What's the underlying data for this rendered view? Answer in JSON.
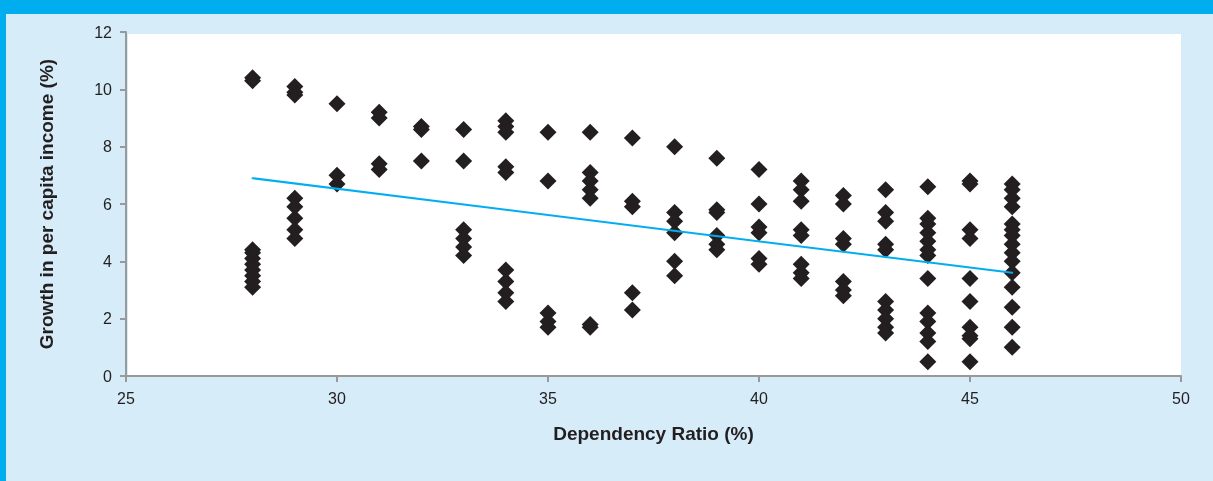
{
  "chart_data": {
    "type": "scatter",
    "xlabel": "Dependency Ratio (%)",
    "ylabel": "Growth in per capita income (%)",
    "xlim": [
      25,
      50
    ],
    "xticks": [
      25,
      30,
      35,
      40,
      45,
      50
    ],
    "ylim": [
      0,
      12
    ],
    "yticks": [
      0,
      2,
      4,
      6,
      8,
      10,
      12
    ],
    "grid": false,
    "marker": "diamond",
    "series": [
      {
        "color": "#231f20",
        "x": [
          28,
          28,
          28,
          28,
          28,
          28,
          28,
          28,
          28,
          28,
          29,
          29,
          29,
          29,
          29,
          29,
          29,
          29,
          30,
          30,
          30,
          31,
          31,
          31,
          31,
          32,
          32,
          32,
          33,
          33,
          33,
          33,
          33,
          33,
          34,
          34,
          34,
          34,
          34,
          34,
          34,
          34,
          34,
          35,
          35,
          35,
          35,
          35,
          36,
          36,
          36,
          36,
          36,
          36,
          36,
          37,
          37,
          37,
          37,
          37,
          38,
          38,
          38,
          38,
          38,
          38,
          39,
          39,
          39,
          39,
          39,
          39,
          40,
          40,
          40,
          40,
          40,
          40,
          41,
          41,
          41,
          41,
          41,
          41,
          41,
          41,
          42,
          42,
          42,
          42,
          42,
          42,
          42,
          43,
          43,
          43,
          43,
          43,
          43,
          43,
          43,
          43,
          43,
          44,
          44,
          44,
          44,
          44,
          44,
          44,
          44,
          44,
          44,
          44,
          44,
          44,
          45,
          45,
          45,
          45,
          45,
          45,
          45,
          45,
          45,
          45,
          46,
          46,
          46,
          46,
          46,
          46,
          46,
          46,
          46,
          46,
          46,
          46,
          46,
          46,
          46
        ],
        "values": [
          10.4,
          10.3,
          4.4,
          4.3,
          4.1,
          3.9,
          3.7,
          3.5,
          3.3,
          3.1,
          10.1,
          9.9,
          9.8,
          6.2,
          5.9,
          5.5,
          5.1,
          4.8,
          9.5,
          7.0,
          6.7,
          9.2,
          9.0,
          7.4,
          7.2,
          8.7,
          8.6,
          7.5,
          8.6,
          7.5,
          5.1,
          4.8,
          4.5,
          4.2,
          8.9,
          8.7,
          8.5,
          7.3,
          7.1,
          3.7,
          3.3,
          2.9,
          2.6,
          8.5,
          6.8,
          2.2,
          1.9,
          1.7,
          8.5,
          7.1,
          6.8,
          6.5,
          6.2,
          1.8,
          1.7,
          8.3,
          6.1,
          5.9,
          2.9,
          2.3,
          8.0,
          5.7,
          5.4,
          5.0,
          4.0,
          3.5,
          7.6,
          5.8,
          5.7,
          4.9,
          4.6,
          4.4,
          7.2,
          6.0,
          5.2,
          5.0,
          4.1,
          3.9,
          6.8,
          6.5,
          6.1,
          5.1,
          4.9,
          3.9,
          3.6,
          3.4,
          6.3,
          6.0,
          4.8,
          4.6,
          3.3,
          3.0,
          2.8,
          6.5,
          5.7,
          5.4,
          4.6,
          4.4,
          2.6,
          2.3,
          2.0,
          1.7,
          1.5,
          6.6,
          5.5,
          5.3,
          5.0,
          4.7,
          4.4,
          4.2,
          3.4,
          2.2,
          1.9,
          1.5,
          1.2,
          0.5,
          6.8,
          6.7,
          5.1,
          4.8,
          3.4,
          2.6,
          1.7,
          1.4,
          1.3,
          0.5,
          6.7,
          6.5,
          6.2,
          5.9,
          5.3,
          5.1,
          4.9,
          4.6,
          4.3,
          4.0,
          3.6,
          3.1,
          2.4,
          1.7,
          1.0
        ]
      },
      {
        "type": "line",
        "color": "#00aeef",
        "marker": "none",
        "line_style": "solid",
        "x": [
          28,
          46
        ],
        "values": [
          6.9,
          3.6
        ]
      }
    ]
  }
}
